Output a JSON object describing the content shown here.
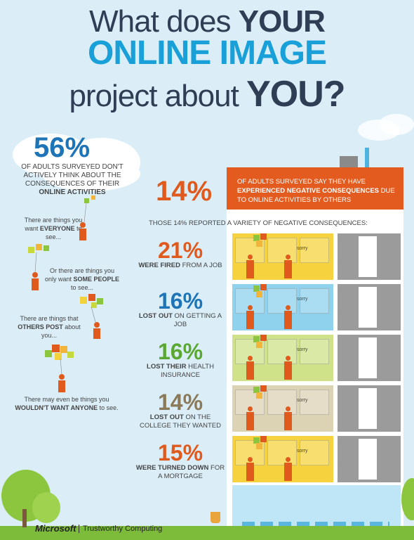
{
  "title": {
    "line1_pre": "What does ",
    "line1_bold": "YOUR",
    "line2": "ONLINE IMAGE",
    "line3_pre": "project about ",
    "line3_bold": "YOU?"
  },
  "left": {
    "stat": "56%",
    "desc_pre": "OF ADULTS SURVEYED DON'T ACTIVELY THINK ABOUT THE CONSEQUENCES OF THEIR ",
    "desc_bold": "ONLINE ACTIVITIES",
    "items": [
      {
        "pre": "There are things you want ",
        "bold": "EVERYONE",
        "post": " to see..."
      },
      {
        "pre": "Or there are things you only want ",
        "bold": "SOME PEOPLE",
        "post": " to see..."
      },
      {
        "pre": "There are things that ",
        "bold": "OTHERS POST",
        "post": " about you..."
      },
      {
        "pre": "There may even be things you ",
        "bold": "WOULDN'T WANT ANYONE",
        "post": " to see."
      }
    ]
  },
  "right": {
    "stat": "14%",
    "banner_pre": "OF ADULTS SURVEYED SAY THEY HAVE ",
    "banner_bold": "EXPERIENCED NEGATIVE CONSEQUENCES",
    "banner_post": " DUE TO ONLINE ACTIVITIES BY OTHERS",
    "subhead": "THOSE 14% REPORTED A VARIETY OF NEGATIVE CONSEQUENCES:",
    "consequences": [
      {
        "pct": "21%",
        "bold": "WERE FIRED",
        "rest": "FROM A JOB",
        "color": "#e05a1d",
        "room": "#f6d33e"
      },
      {
        "pct": "16%",
        "bold": "LOST OUT",
        "rest": "ON GETTING A JOB",
        "color": "#1d74b6",
        "room": "#8fd2ee"
      },
      {
        "pct": "16%",
        "bold": "LOST THEIR",
        "rest": "HEALTH INSURANCE",
        "color": "#5aa832",
        "room": "#cfe28a"
      },
      {
        "pct": "14%",
        "bold": "LOST OUT",
        "rest": "ON THE COLLEGE THEY WANTED",
        "color": "#8a7a5a",
        "room": "#dcd2b4"
      },
      {
        "pct": "15%",
        "bold": "WERE TURNED DOWN",
        "rest": "FOR A MORTGAGE",
        "color": "#e05a1d",
        "room": "#f6d33e"
      }
    ],
    "sorry": "sorry"
  },
  "footer": {
    "brand": "Microsoft",
    "sub": "Trustworthy Computing"
  },
  "colors": {
    "sky": "#dbeef8",
    "title_dark": "#2f3e55",
    "title_blue": "#1aa0d8",
    "orange": "#e05a1d",
    "grass": "#7dbb3a",
    "stair": "#9b9b9b"
  }
}
